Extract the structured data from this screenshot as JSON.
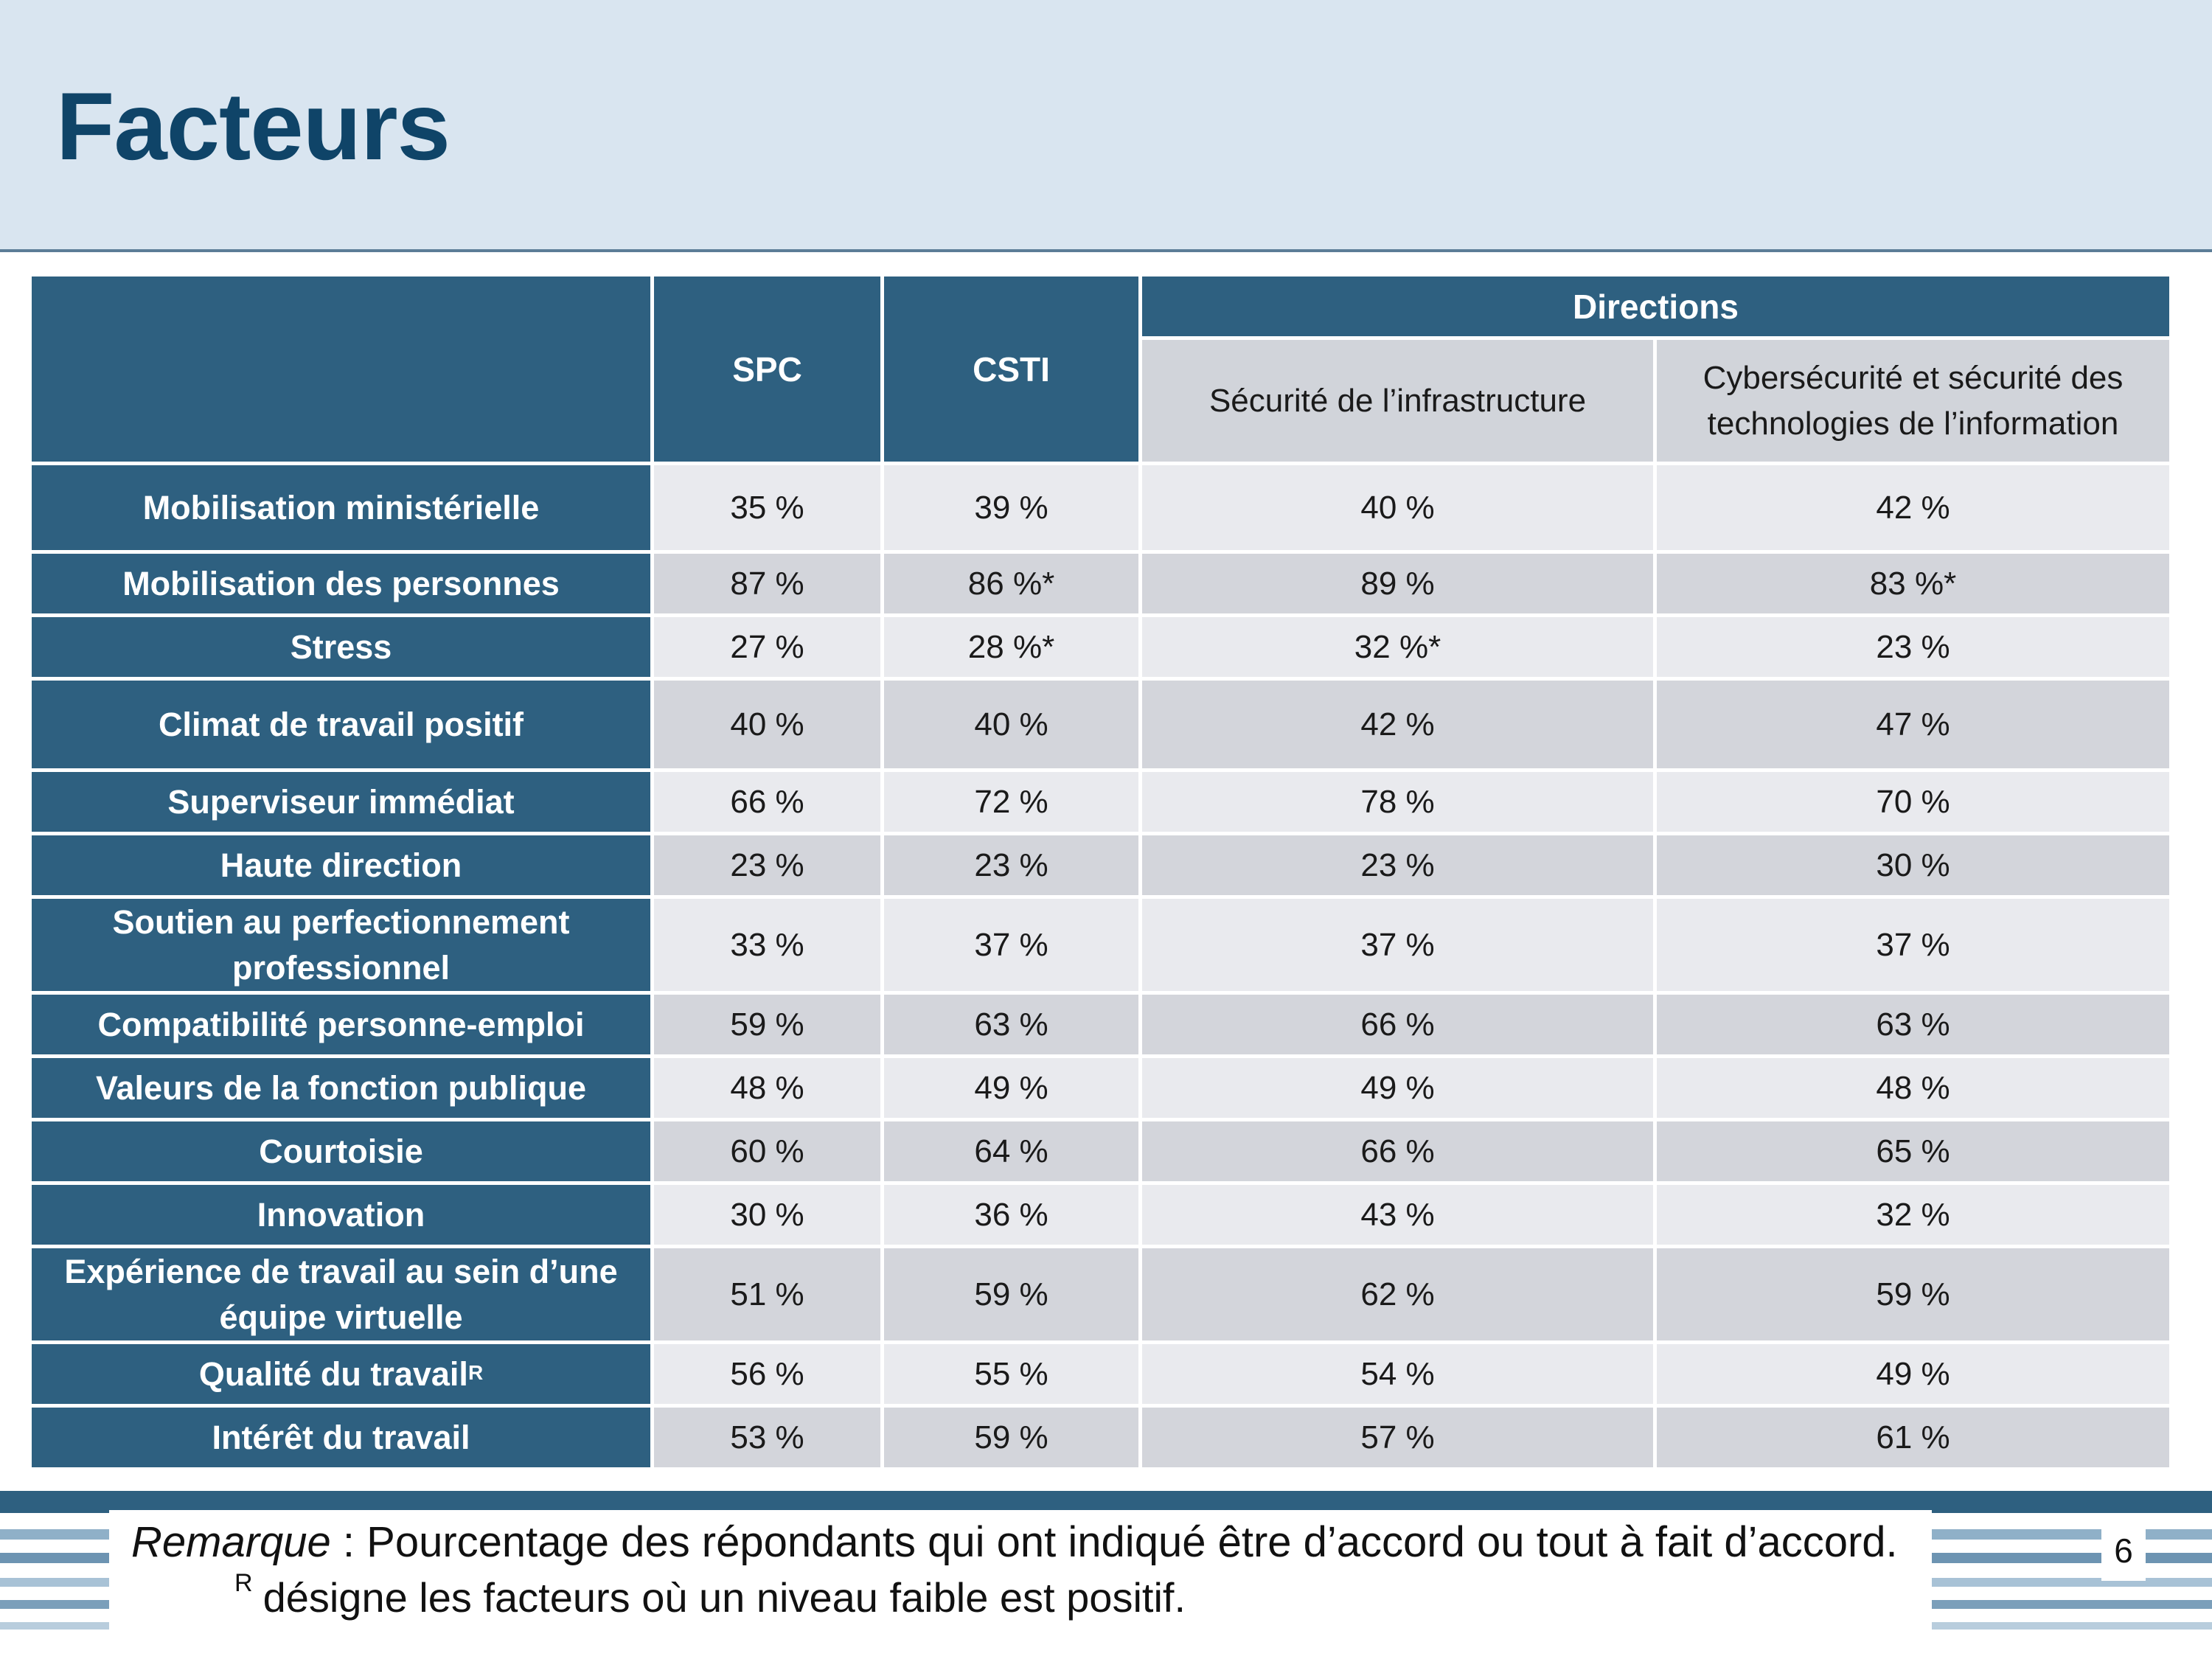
{
  "page": {
    "title": "Facteurs",
    "page_number": "6"
  },
  "table": {
    "headers": {
      "spc": "SPC",
      "csti": "CSTI",
      "directions": "Directions",
      "dir1": "Sécurité de l’infrastructure",
      "dir2_line1": "Cybersécurité et sécurité des",
      "dir2_line2": "technologies de l’information"
    },
    "rows": [
      {
        "label": "Mobilisation ministérielle",
        "spc": "35 %",
        "csti": "39 %",
        "d1": "40 %",
        "d2": "42 %"
      },
      {
        "label": "Mobilisation des personnes",
        "spc": "87 %",
        "csti": "86 %*",
        "d1": "89 %",
        "d2": "83 %*"
      },
      {
        "label": "Stress",
        "spc": "27 %",
        "csti": "28 %*",
        "d1": "32 %*",
        "d2": "23 %"
      },
      {
        "label": "Climat de travail positif",
        "spc": "40 %",
        "csti": "40 %",
        "d1": "42 %",
        "d2": "47 %"
      },
      {
        "label": "Superviseur immédiat",
        "spc": "66 %",
        "csti": "72 %",
        "d1": "78 %",
        "d2": "70 %"
      },
      {
        "label": "Haute direction",
        "spc": "23 %",
        "csti": "23 %",
        "d1": "23 %",
        "d2": "30 %"
      },
      {
        "label_line1": "Soutien au perfectionnement",
        "label_line2": "professionnel",
        "spc": "33 %",
        "csti": "37 %",
        "d1": "37 %",
        "d2": "37 %"
      },
      {
        "label": "Compatibilité personne-emploi",
        "spc": "59 %",
        "csti": "63 %",
        "d1": "66 %",
        "d2": "63 %"
      },
      {
        "label": "Valeurs de la fonction publique",
        "spc": "48 %",
        "csti": "49 %",
        "d1": "49 %",
        "d2": "48 %"
      },
      {
        "label": "Courtoisie",
        "spc": "60 %",
        "csti": "64 %",
        "d1": "66 %",
        "d2": "65 %"
      },
      {
        "label": "Innovation",
        "spc": "30 %",
        "csti": "36 %",
        "d1": "43 %",
        "d2": "32 %"
      },
      {
        "label_line1": "Expérience de travail au sein d’une",
        "label_line2": "équipe virtuelle",
        "spc": "51 %",
        "csti": "59 %",
        "d1": "62 %",
        "d2": "59 %"
      },
      {
        "label": "Qualité du travail",
        "label_sup": "R",
        "spc": "56 %",
        "csti": "55 %",
        "d1": "54 %",
        "d2": "49 %"
      },
      {
        "label": "Intérêt du travail",
        "spc": "53 %",
        "csti": "59 %",
        "d1": "57 %",
        "d2": "61 %"
      }
    ]
  },
  "footer": {
    "note_label": "Remarque",
    "note_sep": " : ",
    "note_text": "Pourcentage des répondants qui ont indiqué être d’accord ou tout à fait d’accord.",
    "r_sup": "R",
    "r_text": "désigne les facteurs où un niveau faible est positif."
  },
  "colors": {
    "header_bg": "#d9e5f0",
    "title": "#0f4468",
    "dark_cell": "#2e6080",
    "light_cell": "#e9eaee",
    "mid_cell": "#d3d5db",
    "stripe_dark": "#2e6080",
    "stripe_light": "#8fb0c8"
  }
}
